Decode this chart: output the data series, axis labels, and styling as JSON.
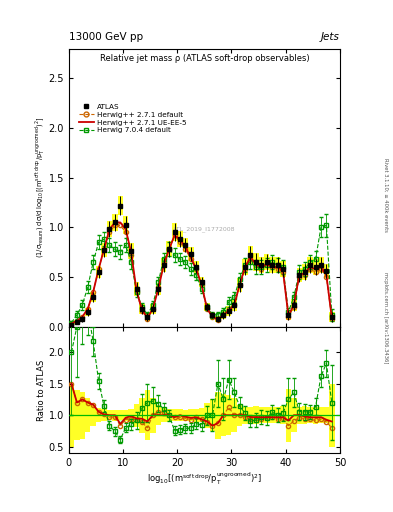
{
  "title_top": "13000 GeV pp",
  "title_right": "Jets",
  "plot_title": "Relative jet mass ρ (ATLAS soft-drop observables)",
  "xlabel": "log$_{10}$[(m$^{\\mathrm{soft\\,drop}}$/p$_\\mathrm{T}^{\\mathrm{ungroomed}}$)$^2$]",
  "ylabel_main": "(1/σ$_{\\mathrm{resum}}$) dσ/d log$_{10}$[(m$^{\\mathrm{soft\\,drop}}$/p$_\\mathrm{T}^{\\mathrm{ungroomed}}$)$^2$]",
  "ylabel_ratio": "Ratio to ATLAS",
  "right_label1": "mcplots.cern.ch [arXiv:1306.3436]",
  "right_label2": "Rivet 3.1.10; ≥ 400k events",
  "watermark": "ATL_2019_I1772008",
  "xlim": [
    0,
    50
  ],
  "ylim_main": [
    0,
    2.8
  ],
  "ylim_ratio": [
    0.4,
    2.4
  ],
  "yticks_main": [
    0,
    0.5,
    1.0,
    1.5,
    2.0,
    2.5
  ],
  "yticks_ratio": [
    0.5,
    1.0,
    1.5,
    2.0
  ],
  "xticks": [
    0,
    10,
    20,
    30,
    40,
    50
  ],
  "atlas_x": [
    0.5,
    1.5,
    2.5,
    3.5,
    4.5,
    5.5,
    6.5,
    7.5,
    8.5,
    9.5,
    10.5,
    11.5,
    12.5,
    13.5,
    14.5,
    15.5,
    16.5,
    17.5,
    18.5,
    19.5,
    20.5,
    21.5,
    22.5,
    23.5,
    24.5,
    25.5,
    26.5,
    27.5,
    28.5,
    29.5,
    30.5,
    31.5,
    32.5,
    33.5,
    34.5,
    35.5,
    36.5,
    37.5,
    38.5,
    39.5,
    40.5,
    41.5,
    42.5,
    43.5,
    44.5,
    45.5,
    46.5,
    47.5,
    48.5
  ],
  "atlas_y": [
    0.02,
    0.05,
    0.08,
    0.15,
    0.3,
    0.55,
    0.77,
    0.98,
    1.05,
    1.22,
    1.02,
    0.76,
    0.38,
    0.18,
    0.1,
    0.18,
    0.38,
    0.62,
    0.78,
    0.95,
    0.88,
    0.82,
    0.73,
    0.6,
    0.45,
    0.2,
    0.12,
    0.08,
    0.12,
    0.16,
    0.22,
    0.42,
    0.6,
    0.72,
    0.65,
    0.62,
    0.65,
    0.62,
    0.62,
    0.58,
    0.12,
    0.22,
    0.52,
    0.55,
    0.62,
    0.6,
    0.62,
    0.56,
    0.1
  ],
  "atlas_yerr": [
    0.01,
    0.02,
    0.03,
    0.04,
    0.05,
    0.06,
    0.07,
    0.08,
    0.09,
    0.1,
    0.09,
    0.08,
    0.07,
    0.05,
    0.04,
    0.05,
    0.06,
    0.07,
    0.08,
    0.09,
    0.08,
    0.07,
    0.07,
    0.06,
    0.05,
    0.04,
    0.03,
    0.03,
    0.04,
    0.05,
    0.06,
    0.07,
    0.08,
    0.09,
    0.09,
    0.08,
    0.08,
    0.08,
    0.08,
    0.08,
    0.05,
    0.06,
    0.07,
    0.08,
    0.08,
    0.08,
    0.08,
    0.07,
    0.05
  ],
  "hw271_y": [
    0.03,
    0.06,
    0.1,
    0.18,
    0.35,
    0.58,
    0.78,
    0.95,
    1.02,
    1.02,
    0.95,
    0.72,
    0.35,
    0.16,
    0.08,
    0.18,
    0.4,
    0.65,
    0.78,
    0.92,
    0.85,
    0.78,
    0.68,
    0.58,
    0.42,
    0.18,
    0.1,
    0.07,
    0.12,
    0.18,
    0.22,
    0.42,
    0.58,
    0.68,
    0.62,
    0.58,
    0.62,
    0.6,
    0.58,
    0.55,
    0.1,
    0.2,
    0.5,
    0.52,
    0.58,
    0.55,
    0.58,
    0.5,
    0.08
  ],
  "hw271ue_y": [
    0.03,
    0.06,
    0.1,
    0.18,
    0.35,
    0.58,
    0.78,
    0.98,
    1.05,
    1.05,
    0.98,
    0.75,
    0.36,
    0.17,
    0.09,
    0.18,
    0.38,
    0.62,
    0.78,
    0.92,
    0.88,
    0.8,
    0.7,
    0.58,
    0.42,
    0.18,
    0.1,
    0.07,
    0.12,
    0.16,
    0.22,
    0.42,
    0.6,
    0.7,
    0.63,
    0.6,
    0.63,
    0.6,
    0.6,
    0.56,
    0.11,
    0.22,
    0.52,
    0.54,
    0.6,
    0.58,
    0.6,
    0.52,
    0.09
  ],
  "hw704_y": [
    0.04,
    0.12,
    0.22,
    0.4,
    0.65,
    0.85,
    0.88,
    0.82,
    0.78,
    0.75,
    0.82,
    0.65,
    0.35,
    0.2,
    0.12,
    0.22,
    0.45,
    0.68,
    0.78,
    0.72,
    0.68,
    0.65,
    0.58,
    0.52,
    0.38,
    0.2,
    0.12,
    0.12,
    0.15,
    0.25,
    0.3,
    0.48,
    0.62,
    0.65,
    0.6,
    0.6,
    0.62,
    0.65,
    0.62,
    0.6,
    0.15,
    0.3,
    0.55,
    0.58,
    0.65,
    0.68,
    1.0,
    1.02,
    0.12
  ],
  "hw704_yerr": [
    0.02,
    0.04,
    0.05,
    0.06,
    0.07,
    0.07,
    0.07,
    0.07,
    0.07,
    0.07,
    0.07,
    0.07,
    0.05,
    0.04,
    0.03,
    0.04,
    0.05,
    0.06,
    0.07,
    0.07,
    0.06,
    0.06,
    0.06,
    0.05,
    0.04,
    0.03,
    0.03,
    0.03,
    0.04,
    0.05,
    0.05,
    0.06,
    0.07,
    0.07,
    0.07,
    0.07,
    0.07,
    0.07,
    0.07,
    0.07,
    0.04,
    0.05,
    0.07,
    0.07,
    0.07,
    0.08,
    0.1,
    0.12,
    0.06
  ],
  "color_atlas": "#000000",
  "color_hw271": "#cc6600",
  "color_hw271ue": "#cc0000",
  "color_hw704": "#009900",
  "color_yellow": "#ffff00",
  "color_green_band": "#88ff88",
  "bg_color": "#ffffff"
}
